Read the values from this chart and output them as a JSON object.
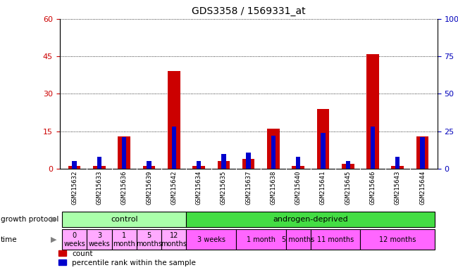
{
  "title": "GDS3358 / 1569331_at",
  "samples": [
    "GSM215632",
    "GSM215633",
    "GSM215636",
    "GSM215639",
    "GSM215642",
    "GSM215634",
    "GSM215635",
    "GSM215637",
    "GSM215638",
    "GSM215640",
    "GSM215641",
    "GSM215645",
    "GSM215646",
    "GSM215643",
    "GSM215644"
  ],
  "count": [
    1,
    1,
    13,
    1,
    39,
    1,
    3,
    4,
    16,
    1,
    24,
    2,
    46,
    1,
    13
  ],
  "percentile": [
    5,
    8,
    21,
    5,
    28,
    5,
    10,
    11,
    22,
    8,
    24,
    5,
    28,
    8,
    21
  ],
  "count_color": "#cc0000",
  "percentile_color": "#0000cc",
  "ylim_left": [
    0,
    60
  ],
  "ylim_right": [
    0,
    100
  ],
  "yticks_left": [
    0,
    15,
    30,
    45,
    60
  ],
  "yticks_right": [
    0,
    25,
    50,
    75,
    100
  ],
  "ytick_labels_left": [
    "0",
    "15",
    "30",
    "45",
    "60"
  ],
  "ytick_labels_right": [
    "0",
    "25",
    "50",
    "75",
    "100%"
  ],
  "growth_protocol_label": "growth protocol",
  "time_label": "time",
  "control_label": "control",
  "androgen_label": "androgen-deprived",
  "control_color": "#aaffaa",
  "androgen_color": "#44dd44",
  "time_ctrl_color": "#ffaaff",
  "time_and_color": "#ff66ff",
  "bg_color": "#ffffff",
  "sample_bg_color": "#dddddd",
  "ylabel_left_color": "#cc0000",
  "ylabel_right_color": "#0000bb",
  "legend_count": "count",
  "legend_pct": "percentile rank within the sample",
  "time_starts": [
    0,
    1,
    2,
    3,
    4,
    5,
    7,
    9,
    10,
    12
  ],
  "time_ends": [
    1,
    2,
    3,
    4,
    5,
    7,
    9,
    10,
    12,
    15
  ],
  "time_labels": [
    "0\nweeks",
    "3\nweeks",
    "1\nmonth",
    "5\nmonths",
    "12\nmonths",
    "3 weeks",
    "1 month",
    "5 months",
    "11 months",
    "12 months"
  ],
  "time_is_ctrl": [
    true,
    true,
    true,
    true,
    true,
    false,
    false,
    false,
    false,
    false
  ]
}
